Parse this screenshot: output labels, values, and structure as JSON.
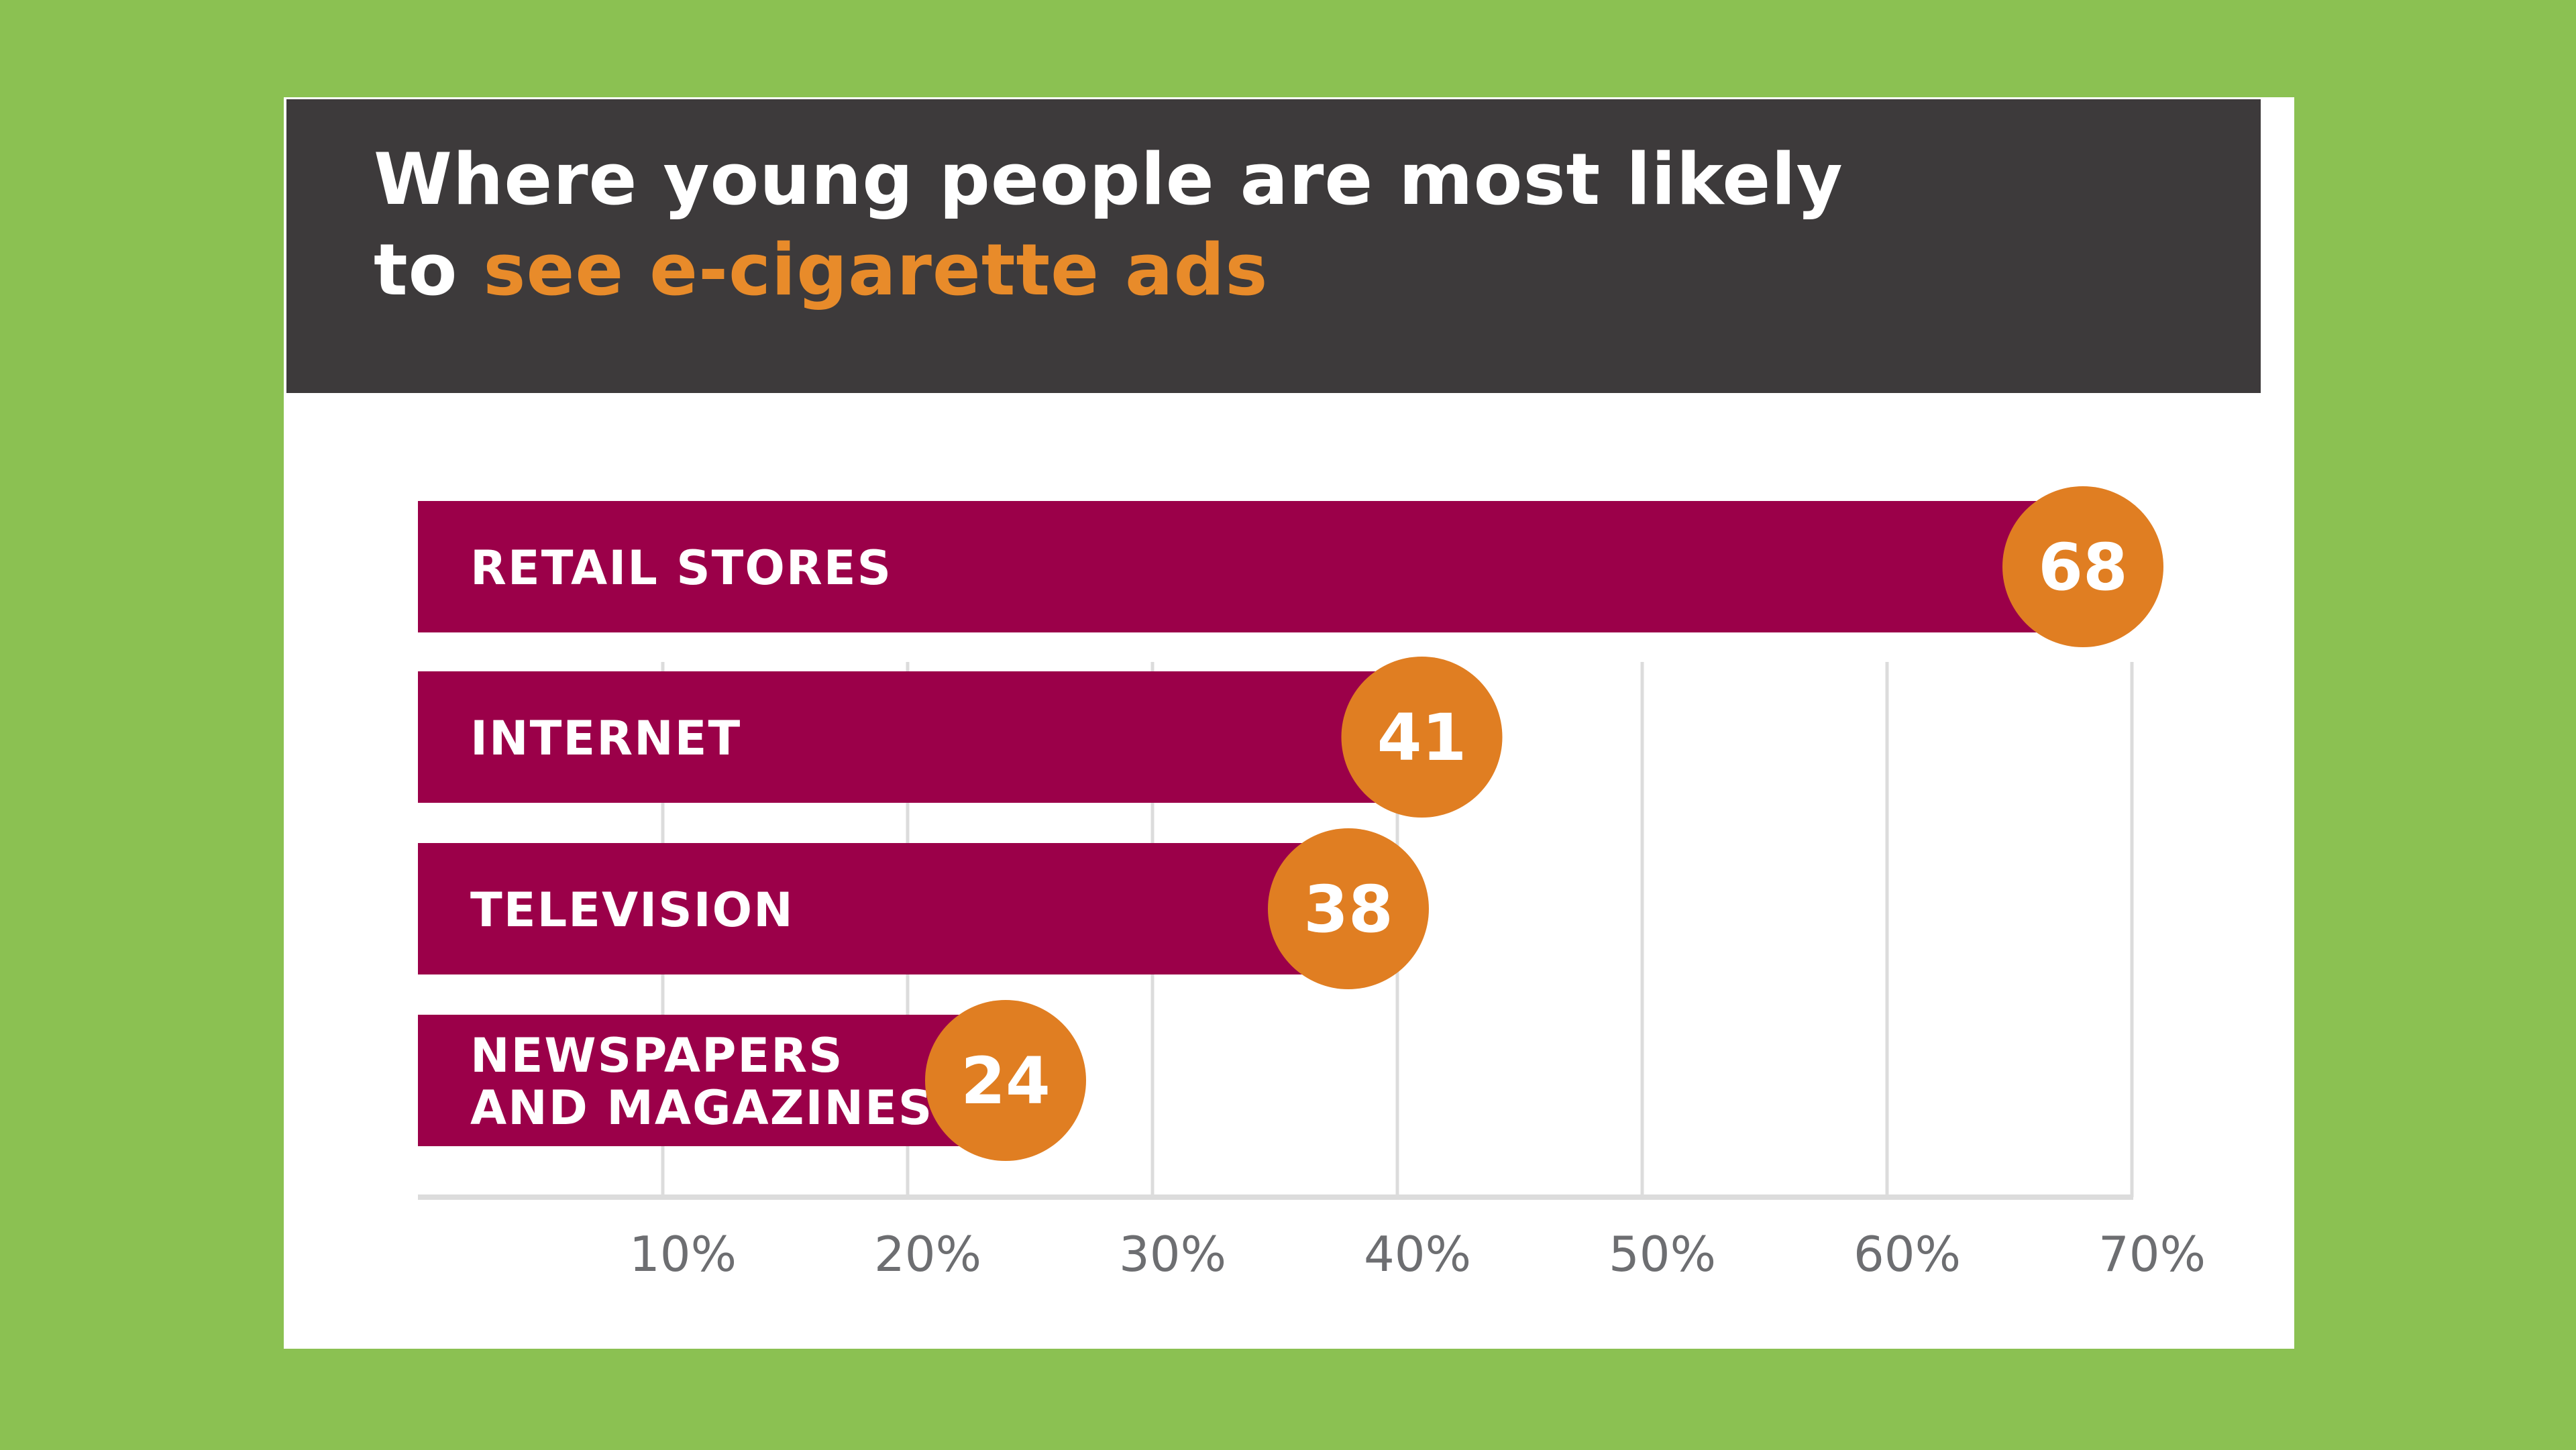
{
  "page": {
    "background_color": "#8bc152",
    "card_color": "#ffffff",
    "header_color": "#3d3a3b"
  },
  "title": {
    "line1": "Where young people are most likely",
    "line2_prefix": "to ",
    "line2_highlight": "see e-cigarette ads"
  },
  "colors": {
    "bar": "#9b0049",
    "bubble": "#e07e22",
    "highlight": "#e88b2a",
    "grid": "#dcdcdc",
    "axis_text": "#6d6e71"
  },
  "chart_data": {
    "type": "bar",
    "orientation": "horizontal",
    "title": "Where young people are most likely to see e-cigarette ads",
    "categories": [
      "RETAIL STORES",
      "INTERNET",
      "TELEVISION",
      "NEWSPAPERS AND MAGAZINES"
    ],
    "category_lines": [
      [
        "RETAIL STORES"
      ],
      [
        "INTERNET"
      ],
      [
        "TELEVISION"
      ],
      [
        "NEWSPAPERS",
        "AND MAGAZINES"
      ]
    ],
    "values": [
      68,
      41,
      38,
      24
    ],
    "value_labels": [
      "68",
      "41",
      "38",
      "24"
    ],
    "xlim": [
      0,
      70
    ],
    "xticks": [
      10,
      20,
      30,
      40,
      50,
      60,
      70
    ],
    "xtick_labels": [
      "10%",
      "20%",
      "30%",
      "40%",
      "50%",
      "60%",
      "70%"
    ],
    "grid": true,
    "xlabel": "",
    "ylabel": ""
  }
}
